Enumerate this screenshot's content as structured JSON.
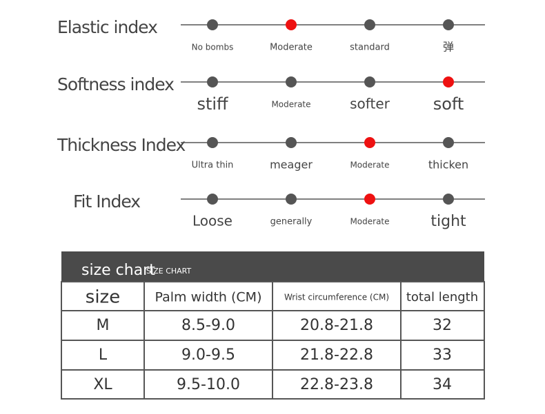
{
  "indices": [
    {
      "label": "Elastic index",
      "options": [
        "No bombs",
        "Moderate",
        "standard",
        "弹"
      ],
      "selected": 1
    },
    {
      "label": "Softness index",
      "options": [
        "stiff",
        "Moderate",
        "softer",
        "soft"
      ],
      "selected": 3
    },
    {
      "label": "Thickness Index",
      "options": [
        "Ultra thin",
        "meager",
        "Moderate",
        "thicken"
      ],
      "selected": 2
    },
    {
      "label": "Fit Index",
      "options": [
        "Loose",
        "generally",
        "Moderate",
        "tight"
      ],
      "selected": 2
    }
  ],
  "dot_color": "#555555",
  "selected_color": "#ee1111",
  "table": {
    "title": "size chart",
    "subtitle": "SIZE CHART",
    "columns": [
      "size",
      "Palm width (CM)",
      "Wrist circumference (CM)",
      "total length"
    ],
    "rows": [
      [
        "M",
        "8.5-9.0",
        "20.8-21.8",
        "32"
      ],
      [
        "L",
        "9.0-9.5",
        "21.8-22.8",
        "33"
      ],
      [
        "XL",
        "9.5-10.0",
        "22.8-23.8",
        "34"
      ]
    ]
  }
}
